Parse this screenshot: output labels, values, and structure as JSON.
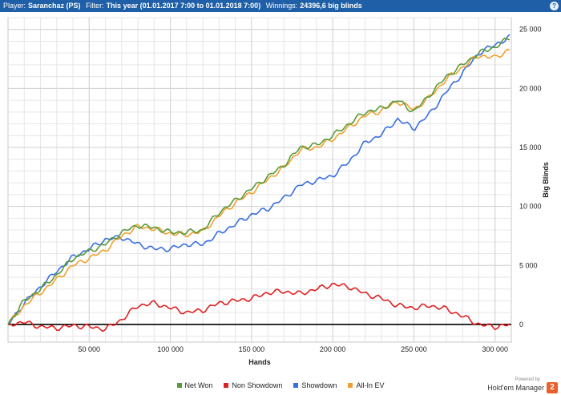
{
  "header": {
    "player_label": "Player:",
    "player": "Saranchaz (PS)",
    "filter_label": "Filter:",
    "filter": "This year (01.01.2017 7:00 to 01.01.2018 7:00)",
    "winnings_label": "Winnings:",
    "winnings": "24396,6 big blinds",
    "help_icon": "help-icon"
  },
  "branding": {
    "powered_by": "Powered by",
    "name": "Hold'em Manager",
    "logo": "2"
  },
  "chart_data": {
    "type": "line",
    "xlabel": "Hands",
    "ylabel": "Big Blinds",
    "xlim": [
      0,
      310000
    ],
    "ylim": [
      -1500,
      26000
    ],
    "x_ticks": [
      50000,
      100000,
      150000,
      200000,
      250000,
      300000
    ],
    "x_tick_labels": [
      "50 000",
      "100 000",
      "150 000",
      "200 000",
      "250 000",
      "300 000"
    ],
    "y_ticks": [
      0,
      5000,
      10000,
      15000,
      20000,
      25000
    ],
    "y_tick_labels": [
      "0",
      "5 000",
      "10 000",
      "15 000",
      "20 000",
      "25 000"
    ],
    "grid": true,
    "legend_position": "bottom",
    "x": [
      0,
      10000,
      20000,
      30000,
      40000,
      50000,
      60000,
      70000,
      80000,
      90000,
      100000,
      110000,
      120000,
      130000,
      140000,
      150000,
      160000,
      170000,
      180000,
      190000,
      200000,
      210000,
      220000,
      230000,
      240000,
      250000,
      260000,
      270000,
      280000,
      290000,
      300000,
      310000
    ],
    "series": [
      {
        "name": "Net Won",
        "color": "#5a9a3a",
        "values": [
          0,
          2000,
          3000,
          4200,
          5600,
          6200,
          6800,
          7800,
          8400,
          8200,
          7800,
          7800,
          8000,
          9500,
          10500,
          11500,
          12500,
          13500,
          15000,
          15200,
          16000,
          17000,
          18000,
          18300,
          19000,
          18000,
          19500,
          21000,
          22000,
          23000,
          23500,
          24400
        ]
      },
      {
        "name": "Non Showdown",
        "color": "#e02020",
        "values": [
          0,
          200,
          -200,
          -300,
          -100,
          -200,
          -400,
          400,
          1600,
          1800,
          1400,
          1000,
          1200,
          1800,
          2000,
          2200,
          2700,
          2800,
          2600,
          3000,
          3400,
          3200,
          2600,
          2200,
          1600,
          1400,
          1600,
          1300,
          700,
          0,
          -200,
          0
        ]
      },
      {
        "name": "Showdown",
        "color": "#3a6ee0",
        "values": [
          0,
          1800,
          3200,
          4500,
          5700,
          6400,
          7200,
          7400,
          6800,
          6400,
          6400,
          6800,
          6800,
          7700,
          8500,
          9300,
          9800,
          10700,
          11800,
          12200,
          12600,
          13800,
          15400,
          16100,
          17400,
          16600,
          17900,
          19700,
          21300,
          23000,
          23700,
          24400
        ]
      },
      {
        "name": "All-In EV",
        "color": "#f0a030",
        "values": [
          0,
          1600,
          2700,
          3800,
          5000,
          5600,
          6300,
          7500,
          8300,
          8100,
          7700,
          7600,
          7900,
          9200,
          10300,
          11200,
          12300,
          13300,
          14800,
          15000,
          15700,
          16700,
          17700,
          18100,
          18900,
          18200,
          19300,
          20800,
          21800,
          22800,
          22600,
          23400
        ]
      }
    ],
    "zero_line_color": "#000000"
  }
}
